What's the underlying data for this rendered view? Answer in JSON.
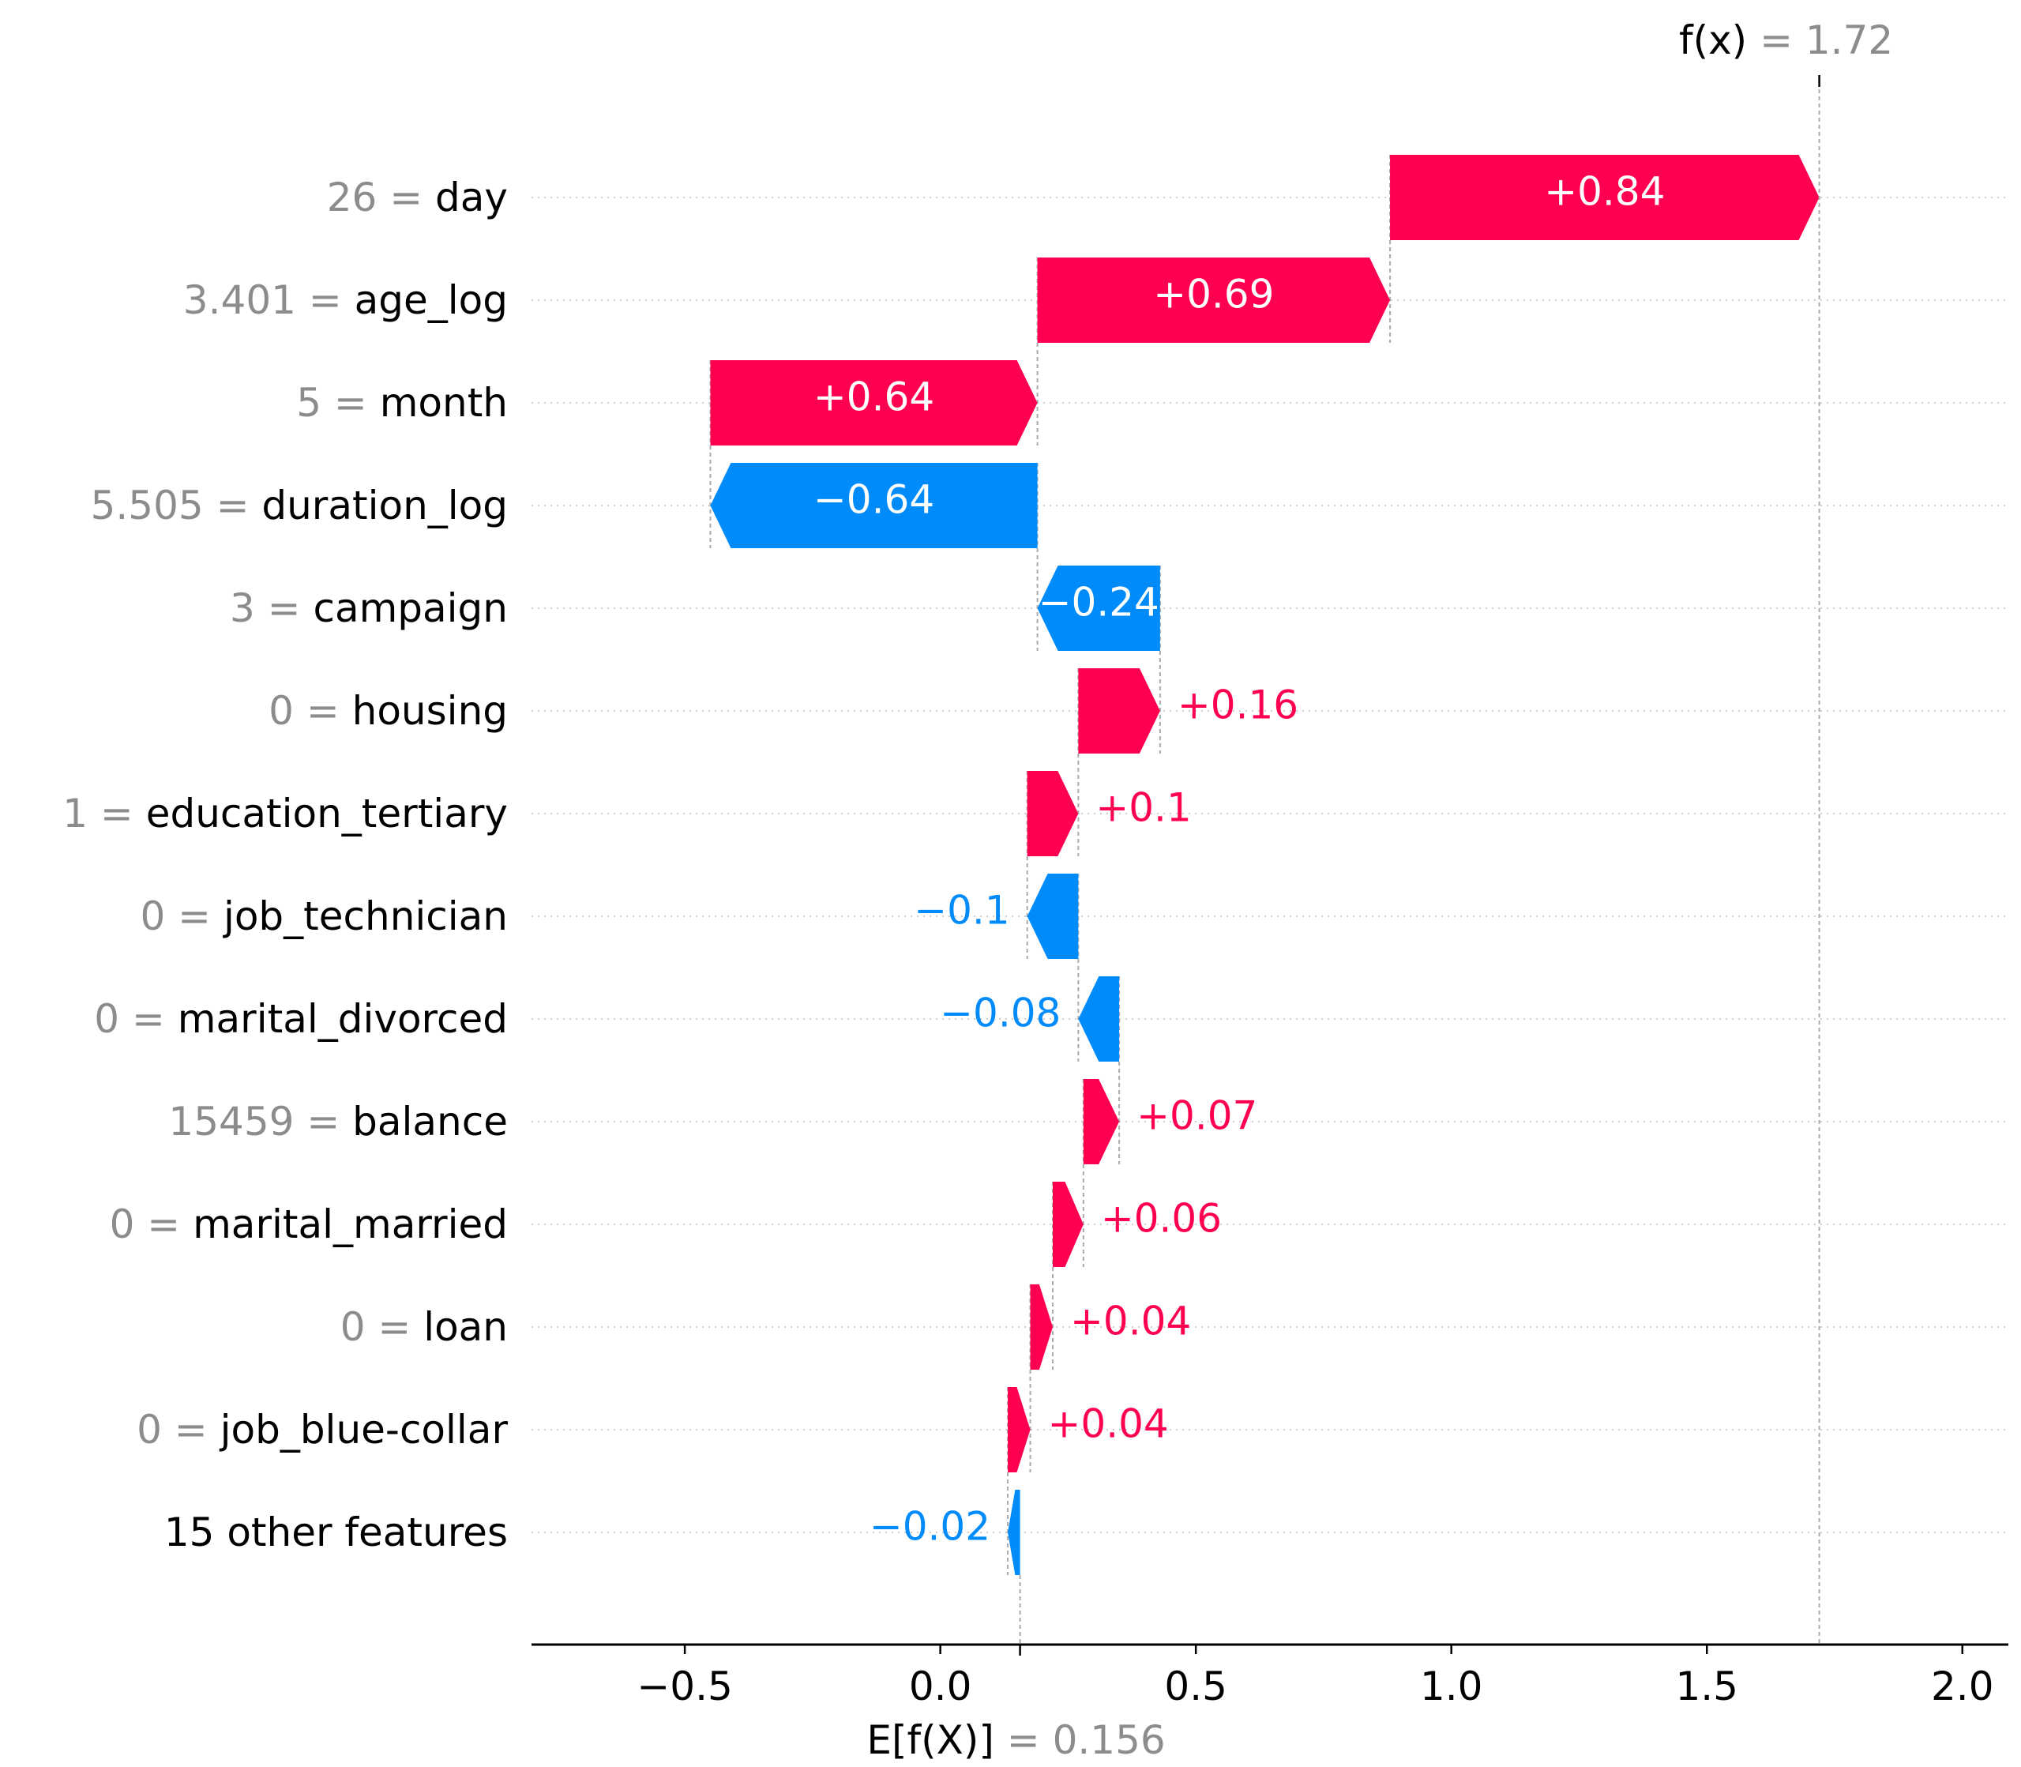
{
  "chart_data": {
    "type": "waterfall",
    "xlim": [
      -0.8,
      2.09
    ],
    "xticks": [
      -0.5,
      0.0,
      0.5,
      1.0,
      1.5,
      2.0
    ],
    "xtick_labels": [
      "−0.5",
      "0.0",
      "0.5",
      "1.0",
      "1.5",
      "2.0"
    ],
    "base_value": 0.156,
    "output_value": 1.72,
    "base_label": {
      "name": "E[f(X)]",
      "value": "0.156"
    },
    "output_label": {
      "name": "f(x)",
      "value": "1.72"
    },
    "colors": {
      "positive": "#ff0051",
      "negative": "#008bfb",
      "muted": "#8c8c8c"
    },
    "features": [
      {
        "value": "26",
        "name": "day",
        "start": 0.88,
        "end": 1.72,
        "label": "+0.84",
        "label_inside": true
      },
      {
        "value": "3.401",
        "name": "age_log",
        "start": 0.19,
        "end": 0.88,
        "label": "+0.69",
        "label_inside": true
      },
      {
        "value": "5",
        "name": "month",
        "start": -0.45,
        "end": 0.19,
        "label": "+0.64",
        "label_inside": true
      },
      {
        "value": "5.505",
        "name": "duration_log",
        "start": 0.19,
        "end": -0.45,
        "label": "−0.64",
        "label_inside": true
      },
      {
        "value": "3",
        "name": "campaign",
        "start": 0.43,
        "end": 0.19,
        "label": "−0.24",
        "label_inside": true
      },
      {
        "value": "0",
        "name": "housing",
        "start": 0.27,
        "end": 0.43,
        "label": "+0.16",
        "label_inside": false
      },
      {
        "value": "1",
        "name": "education_tertiary",
        "start": 0.17,
        "end": 0.27,
        "label": "+0.1",
        "label_inside": false
      },
      {
        "value": "0",
        "name": "job_technician",
        "start": 0.27,
        "end": 0.17,
        "label": "−0.1",
        "label_inside": false
      },
      {
        "value": "0",
        "name": "marital_divorced",
        "start": 0.35,
        "end": 0.27,
        "label": "−0.08",
        "label_inside": false
      },
      {
        "value": "15459",
        "name": "balance",
        "start": 0.28,
        "end": 0.35,
        "label": "+0.07",
        "label_inside": false
      },
      {
        "value": "0",
        "name": "marital_married",
        "start": 0.22,
        "end": 0.28,
        "label": "+0.06",
        "label_inside": false
      },
      {
        "value": "0",
        "name": "loan",
        "start": 0.176,
        "end": 0.22,
        "label": "+0.04",
        "label_inside": false
      },
      {
        "value": "0",
        "name": "job_blue-collar",
        "start": 0.132,
        "end": 0.176,
        "label": "+0.04",
        "label_inside": false
      },
      {
        "value": "",
        "name": "15 other features",
        "start": 0.156,
        "end": 0.132,
        "label": "−0.02",
        "label_inside": false
      }
    ]
  }
}
